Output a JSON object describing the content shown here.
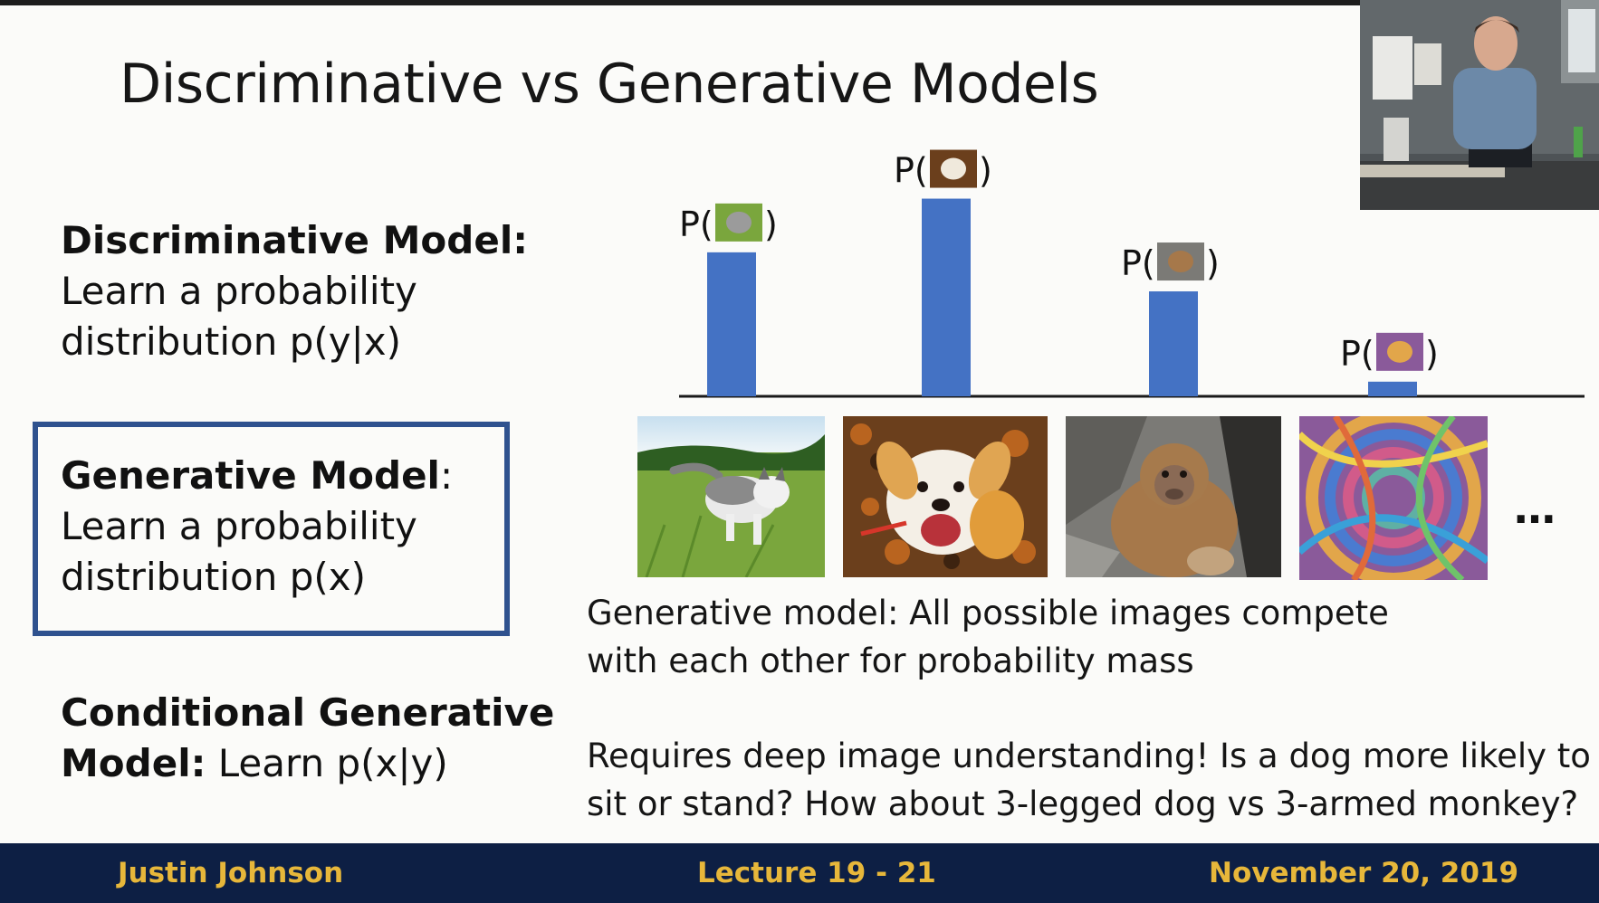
{
  "slide": {
    "title": "Discriminative vs Generative Models",
    "discriminative": {
      "heading": "Discriminative Model:",
      "line1": "Learn a probability",
      "line2": "distribution p(y|x)"
    },
    "generative": {
      "heading": "Generative Model",
      "colon": ":",
      "line1": "Learn a probability",
      "line2": "distribution p(x)"
    },
    "conditional": {
      "heading1": "Conditional Generative",
      "heading2": "Model:",
      "rest": " Learn p(x|y)"
    },
    "caption1": {
      "line1": "Generative model: All possible images compete",
      "line2": "with each other for probability mass"
    },
    "caption2": {
      "line1": "Requires deep image understanding! Is a dog more likely to",
      "line2": "sit or stand? How about 3-legged dog vs 3-armed monkey?"
    },
    "ellipsis": "…",
    "footer": {
      "author": "Justin Johnson",
      "lecture": "Lecture 19 - 21",
      "date": "November 20, 2019"
    }
  },
  "chart_data": {
    "type": "bar",
    "categories": [
      "cat",
      "dog",
      "monkey",
      "abstract"
    ],
    "values": [
      0.59,
      0.81,
      0.43,
      0.06
    ],
    "label_prefix": "P(",
    "label_suffix": ")",
    "bar_color": "#4472c4"
  },
  "colors": {
    "accent": "#2f528f",
    "footer_bg": "#0d1f44",
    "footer_text": "#e7b73a",
    "bar": "#4472c4"
  },
  "icons": {
    "ellipsis": "more-images-ellipsis"
  }
}
